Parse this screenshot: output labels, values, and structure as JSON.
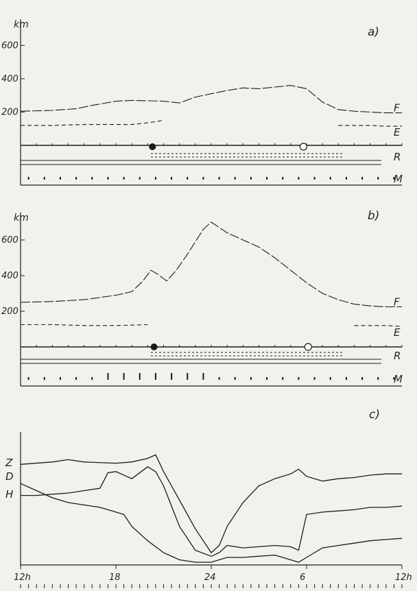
{
  "chart_data": [
    {
      "type": "line",
      "panel_label": "a)",
      "yunit": "km",
      "yticks": [
        200,
        400,
        600
      ],
      "ylim": [
        0,
        700
      ],
      "series": [
        {
          "name": "F",
          "x": [
            12,
            14,
            15.5,
            16.5,
            18,
            19,
            21,
            22,
            23,
            24,
            25,
            26,
            27,
            28,
            29,
            30,
            31,
            32,
            33,
            34,
            35,
            36
          ],
          "values": [
            205,
            210,
            220,
            240,
            265,
            270,
            265,
            255,
            290,
            310,
            330,
            345,
            340,
            350,
            360,
            340,
            260,
            215,
            205,
            200,
            195,
            195
          ]
        },
        {
          "name": "E",
          "x": [
            12,
            14,
            16,
            18,
            19,
            20,
            21,
            22,
            23,
            24,
            25,
            26,
            27,
            28,
            29,
            30,
            31,
            32,
            33,
            34,
            35,
            36
          ],
          "values": [
            120,
            120,
            125,
            125,
            125,
            135,
            150,
            0,
            0,
            0,
            0,
            0,
            0,
            0,
            0,
            0,
            0,
            120,
            120,
            120,
            115,
            115
          ]
        }
      ],
      "rows": [
        "R",
        "M"
      ],
      "sunset_hour": 20.3,
      "sunrise_hour": 29.8
    },
    {
      "type": "line",
      "panel_label": "b)",
      "yunit": "km",
      "yticks": [
        200,
        400,
        600
      ],
      "ylim": [
        0,
        700
      ],
      "series": [
        {
          "name": "F",
          "x": [
            12,
            14,
            16,
            18,
            19,
            19.7,
            20.2,
            20.6,
            21.2,
            21.8,
            22.5,
            23,
            23.5,
            24,
            25,
            26,
            27,
            28,
            29,
            30,
            31,
            32,
            33,
            34,
            35,
            36
          ],
          "values": [
            250,
            255,
            265,
            290,
            310,
            370,
            430,
            410,
            370,
            430,
            520,
            590,
            660,
            700,
            640,
            600,
            560,
            500,
            430,
            360,
            300,
            265,
            240,
            230,
            225,
            225
          ]
        },
        {
          "name": "E",
          "x": [
            12,
            14,
            16,
            18,
            20,
            22,
            24,
            26,
            28,
            30,
            32,
            33,
            34,
            35,
            36
          ],
          "values": [
            125,
            125,
            120,
            120,
            125,
            0,
            0,
            0,
            0,
            0,
            0,
            120,
            120,
            120,
            115
          ]
        }
      ],
      "rows": [
        "R",
        "M"
      ],
      "sunset_hour": 20.4,
      "sunrise_hour": 30.1
    },
    {
      "type": "line",
      "panel_label": "c)",
      "x_tick_labels": [
        "12h",
        "18",
        "24",
        "6",
        "12h"
      ],
      "x_tick_hours": [
        12,
        18,
        24,
        30,
        36
      ],
      "xlim": [
        12,
        36
      ],
      "series": [
        {
          "name": "Z",
          "x": [
            12,
            14,
            15,
            16,
            18,
            19,
            20,
            20.5,
            21,
            22,
            23,
            24,
            24.5,
            25,
            26,
            27,
            28,
            29,
            29.5,
            30,
            31,
            32,
            33,
            34,
            35,
            36
          ],
          "values": [
            82,
            84,
            86,
            84,
            83,
            84,
            87,
            90,
            76,
            52,
            28,
            8,
            14,
            30,
            50,
            64,
            70,
            74,
            78,
            72,
            68,
            70,
            71,
            73,
            74,
            74
          ]
        },
        {
          "name": "D",
          "x": [
            12,
            13,
            14,
            15,
            16,
            17,
            17.5,
            18,
            19,
            20,
            20.5,
            21,
            22,
            23,
            24,
            24.5,
            25,
            26,
            27,
            28,
            29,
            29.5,
            30,
            31,
            32,
            33,
            34,
            35,
            36
          ],
          "values": [
            56,
            56,
            57,
            58,
            60,
            62,
            75,
            76,
            70,
            80,
            76,
            64,
            30,
            10,
            5,
            8,
            14,
            12,
            13,
            14,
            13,
            10,
            40,
            42,
            43,
            44,
            46,
            46,
            47
          ]
        },
        {
          "name": "H",
          "x": [
            12,
            13,
            14,
            15,
            16,
            17,
            18,
            18.5,
            19,
            20,
            21,
            22,
            23,
            24,
            25,
            26,
            27,
            28,
            29,
            29.5,
            30,
            31,
            32,
            33,
            34,
            35,
            36
          ],
          "values": [
            66,
            60,
            54,
            50,
            48,
            46,
            42,
            40,
            30,
            18,
            8,
            2,
            0,
            0,
            4,
            4,
            5,
            6,
            2,
            0,
            4,
            12,
            14,
            16,
            18,
            19,
            20
          ]
        }
      ]
    }
  ],
  "colors": {
    "ink": "#1a1a1a",
    "paper": "#f3f1ec"
  }
}
